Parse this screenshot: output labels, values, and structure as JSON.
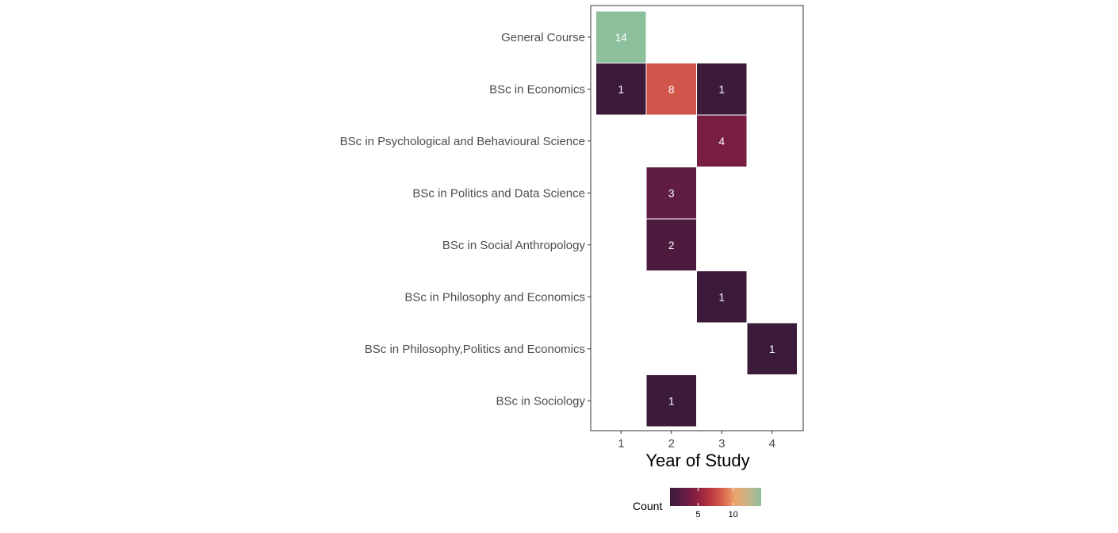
{
  "chart_data": {
    "type": "heatmap",
    "xlabel": "Year of Study",
    "x_categories": [
      "1",
      "2",
      "3",
      "4"
    ],
    "y_categories": [
      "General Course",
      "BSc in Economics",
      "BSc in Psychological and Behavioural Science",
      "BSc in Politics and Data Science",
      "BSc in Social Anthropology",
      "BSc in Philosophy and Economics",
      "BSc in Philosophy,Politics and Economics",
      "BSc in Sociology"
    ],
    "cells": [
      {
        "x": "1",
        "y": "General Course",
        "value": 14
      },
      {
        "x": "1",
        "y": "BSc in Economics",
        "value": 1
      },
      {
        "x": "2",
        "y": "BSc in Economics",
        "value": 8
      },
      {
        "x": "3",
        "y": "BSc in Economics",
        "value": 1
      },
      {
        "x": "3",
        "y": "BSc in Psychological and Behavioural Science",
        "value": 4
      },
      {
        "x": "2",
        "y": "BSc in Politics and Data Science",
        "value": 3
      },
      {
        "x": "2",
        "y": "BSc in Social Anthropology",
        "value": 2
      },
      {
        "x": "3",
        "y": "BSc in Philosophy and Economics",
        "value": 1
      },
      {
        "x": "4",
        "y": "BSc in Philosophy,Politics and Economics",
        "value": 1
      },
      {
        "x": "2",
        "y": "BSc in Sociology",
        "value": 1
      }
    ],
    "legend": {
      "title": "Count",
      "position": "bottom",
      "range": [
        1,
        14
      ],
      "ticks": [
        5,
        10
      ],
      "colors": [
        "#3b1a3a",
        "#5e1c44",
        "#8a1f43",
        "#b83241",
        "#d8604d",
        "#eca66e",
        "#c8b588",
        "#8cbf9c"
      ]
    },
    "grid": false
  }
}
